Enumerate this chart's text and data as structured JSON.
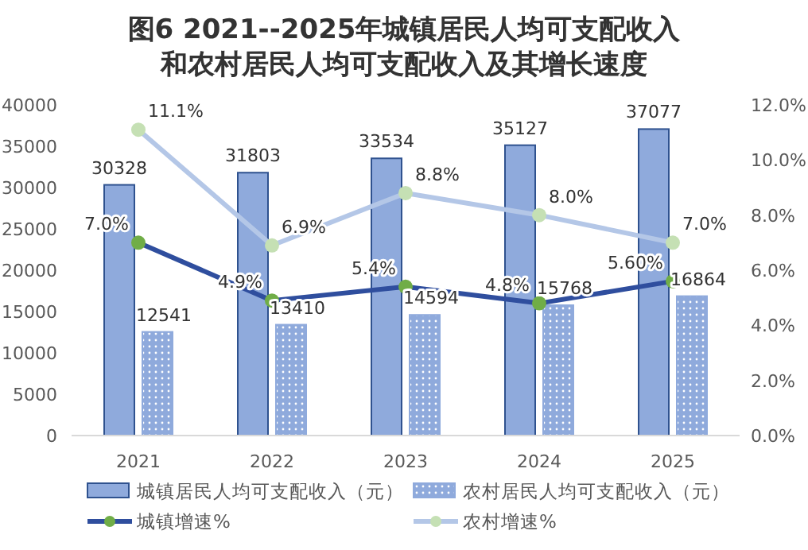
{
  "chart_data": {
    "type": "bar",
    "title": "图6  2021--2025年城镇居民人均可支配收入和农村居民人均可支配收入及其增长速度",
    "categories": [
      "2021",
      "2022",
      "2023",
      "2024",
      "2025"
    ],
    "series": [
      {
        "name": "城镇居民人均可支配收入（元）",
        "color": "#8faadc",
        "values": [
          30328,
          31803,
          33534,
          35127,
          37077
        ]
      },
      {
        "name": "农村居民人均可支配收入（元）",
        "color": "#8faadc",
        "values": [
          12541,
          13410,
          14594,
          15768,
          16864
        ]
      },
      {
        "name": "城镇增速%",
        "type": "line",
        "axis": "y2",
        "color": "#2f4e9e",
        "values": [
          7.0,
          4.9,
          5.4,
          4.8,
          5.6
        ],
        "value_labels": [
          "7.0%",
          "4.9%",
          "5.4%",
          "4.8%",
          "5.60%"
        ]
      },
      {
        "name": "农村增速%",
        "type": "line",
        "axis": "y2",
        "color": "#b4c7e7",
        "values": [
          11.1,
          6.9,
          8.8,
          8.0,
          7.0
        ],
        "value_labels": [
          "11.1%",
          "6.9%",
          "8.8%",
          "8.0%",
          "7.0%"
        ]
      }
    ],
    "data_labels": true,
    "ylim": [
      0,
      40000
    ],
    "yticks": [
      0,
      5000,
      10000,
      15000,
      20000,
      25000,
      30000,
      35000,
      40000
    ],
    "y2lim": [
      0,
      12
    ],
    "y2ticks": [
      {
        "value": 0,
        "label": "0.0%"
      },
      {
        "value": 2,
        "label": "2.0%"
      },
      {
        "value": 4,
        "label": "4.0%"
      },
      {
        "value": 6,
        "label": "6.0%"
      },
      {
        "value": 8,
        "label": "8.0%"
      },
      {
        "value": 10,
        "label": "10.0%"
      },
      {
        "value": 12,
        "label": "12.0%"
      }
    ],
    "marker": "circle",
    "line_style": "solid",
    "legend": "bottom",
    "grid": false
  }
}
